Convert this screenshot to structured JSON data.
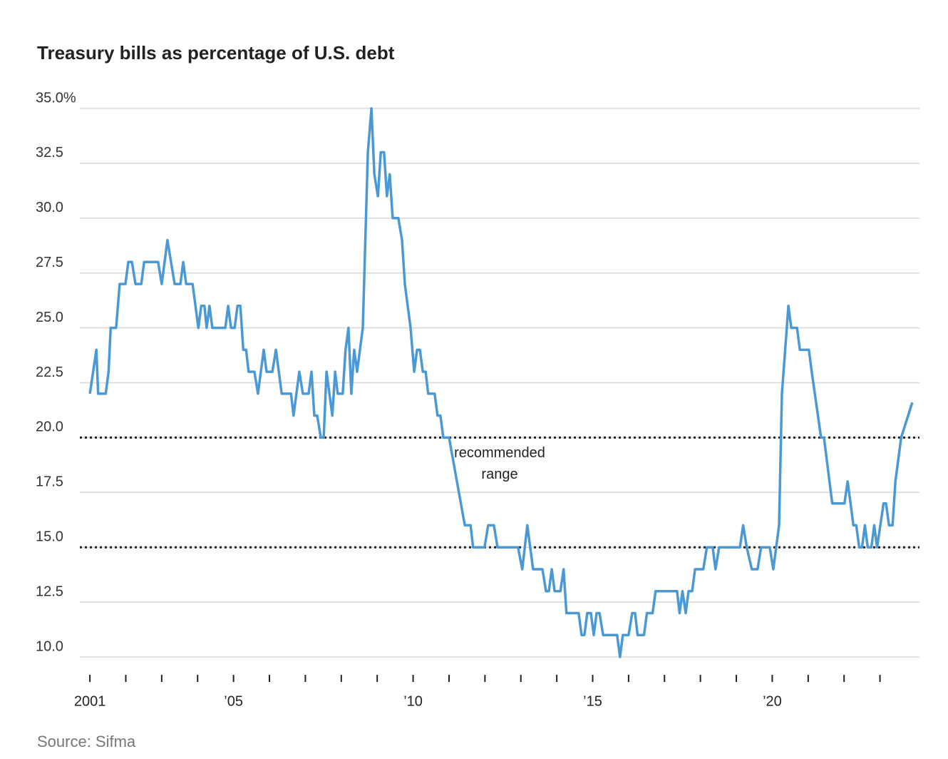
{
  "chart_data": {
    "type": "line",
    "title": "Treasury bills as percentage of U.S. debt",
    "source": "Source: Sifma",
    "annotation": "recommended range",
    "reference_lines": [
      20,
      15
    ],
    "x": [
      2001.0,
      2001.18,
      2001.23,
      2001.44,
      2001.52,
      2001.58,
      2001.73,
      2001.83,
      2001.99,
      2002.07,
      2002.17,
      2002.27,
      2002.43,
      2002.51,
      2002.9,
      2003.0,
      2003.16,
      2003.36,
      2003.52,
      2003.6,
      2003.68,
      2003.86,
      2004.02,
      2004.1,
      2004.19,
      2004.25,
      2004.33,
      2004.41,
      2004.77,
      2004.85,
      2004.93,
      2005.03,
      2005.11,
      2005.19,
      2005.27,
      2005.35,
      2005.42,
      2005.58,
      2005.68,
      2005.84,
      2005.92,
      2006.08,
      2006.18,
      2006.34,
      2006.6,
      2006.67,
      2006.83,
      2006.93,
      2007.09,
      2007.17,
      2007.25,
      2007.33,
      2007.43,
      2007.51,
      2007.59,
      2007.75,
      2007.83,
      2007.9,
      2008.04,
      2008.12,
      2008.2,
      2008.28,
      2008.36,
      2008.44,
      2008.6,
      2008.74,
      2008.84,
      2008.92,
      2009.02,
      2009.1,
      2009.19,
      2009.27,
      2009.35,
      2009.43,
      2009.59,
      2009.69,
      2009.77,
      2009.93,
      2010.03,
      2010.11,
      2010.19,
      2010.27,
      2010.35,
      2010.42,
      2010.6,
      2010.68,
      2010.76,
      2010.84,
      2011.0,
      2011.44,
      2011.6,
      2011.67,
      2011.99,
      2012.09,
      2012.25,
      2012.35,
      2012.92,
      2013.04,
      2013.18,
      2013.34,
      2013.6,
      2013.7,
      2013.78,
      2013.86,
      2013.94,
      2014.1,
      2014.19,
      2014.27,
      2014.61,
      2014.69,
      2014.77,
      2014.85,
      2014.95,
      2015.03,
      2015.11,
      2015.19,
      2015.29,
      2015.68,
      2015.76,
      2015.84,
      2016.0,
      2016.1,
      2016.18,
      2016.25,
      2016.43,
      2016.51,
      2016.67,
      2016.75,
      2017.35,
      2017.42,
      2017.5,
      2017.59,
      2017.67,
      2017.77,
      2017.85,
      2018.08,
      2018.18,
      2018.34,
      2018.42,
      2018.52,
      2019.1,
      2019.19,
      2019.29,
      2019.43,
      2019.59,
      2019.69,
      2019.93,
      2020.03,
      2020.19,
      2020.27,
      2020.45,
      2020.53,
      2020.69,
      2020.77,
      2021.02,
      2021.1,
      2021.36,
      2021.44,
      2021.67,
      2022.01,
      2022.1,
      2022.26,
      2022.34,
      2022.42,
      2022.5,
      2022.58,
      2022.66,
      2022.76,
      2022.84,
      2022.92,
      2023.1,
      2023.17,
      2023.25,
      2023.35,
      2023.43,
      2023.59,
      2023.9
    ],
    "series": [
      {
        "name": "Treasury bills",
        "color": "#4a98d4",
        "values": [
          22,
          24,
          22,
          22,
          23,
          25,
          25,
          27,
          27,
          28,
          28,
          27,
          27,
          28,
          28,
          27,
          29,
          27,
          27,
          28,
          27,
          27,
          25,
          26,
          26,
          25,
          26,
          25,
          25,
          26,
          25,
          25,
          26,
          26,
          24,
          24,
          23,
          23,
          22,
          24,
          23,
          23,
          24,
          22,
          22,
          21,
          23,
          22,
          22,
          23,
          21,
          21,
          20,
          20,
          23,
          21,
          23,
          22,
          22,
          24,
          25,
          22,
          24,
          23,
          25,
          33,
          35,
          32,
          31,
          33,
          33,
          31,
          32,
          30,
          30,
          29,
          27,
          25,
          23,
          24,
          24,
          23,
          23,
          22,
          22,
          21,
          21,
          20,
          20,
          16,
          16,
          15,
          15,
          16,
          16,
          15,
          15,
          14,
          16,
          14,
          14,
          13,
          13,
          14,
          13,
          13,
          14,
          12,
          12,
          11,
          11,
          12,
          12,
          11,
          12,
          12,
          11,
          11,
          10,
          11,
          11,
          12,
          12,
          11,
          11,
          12,
          12,
          13,
          13,
          12,
          13,
          12,
          13,
          13,
          14,
          14,
          15,
          15,
          14,
          15,
          15,
          16,
          15,
          14,
          14,
          15,
          15,
          14,
          16,
          22,
          26,
          25,
          25,
          24,
          24,
          23,
          20,
          20,
          17,
          17,
          18,
          16,
          16,
          15,
          15,
          16,
          15,
          15,
          16,
          15,
          17,
          17,
          16,
          16,
          18,
          20,
          21.6
        ]
      }
    ],
    "xlim": [
      2000.72,
      2024.1
    ],
    "xticks": [
      {
        "value": 2001,
        "label": "2001"
      },
      {
        "value": 2005,
        "label": "’05"
      },
      {
        "value": 2010,
        "label": "’10"
      },
      {
        "value": 2015,
        "label": "’15"
      },
      {
        "value": 2020,
        "label": "’20"
      }
    ],
    "xticks_minor": [
      2002,
      2003,
      2004,
      2006,
      2007,
      2008,
      2009,
      2011,
      2012,
      2013,
      2014,
      2016,
      2017,
      2018,
      2019,
      2021,
      2022,
      2023
    ],
    "ylim": [
      10,
      35
    ],
    "yticks": [
      {
        "value": 10,
        "label": "10.0"
      },
      12.5,
      {
        "value": 15,
        "label": "15.0"
      },
      17.5,
      {
        "value": 20,
        "label": "20.0"
      },
      22.5,
      {
        "value": 25,
        "label": "25.0"
      },
      27.5,
      {
        "value": 30,
        "label": "30.0"
      },
      32.5,
      {
        "value": 35,
        "label": "35.0%"
      }
    ],
    "grid": true
  }
}
